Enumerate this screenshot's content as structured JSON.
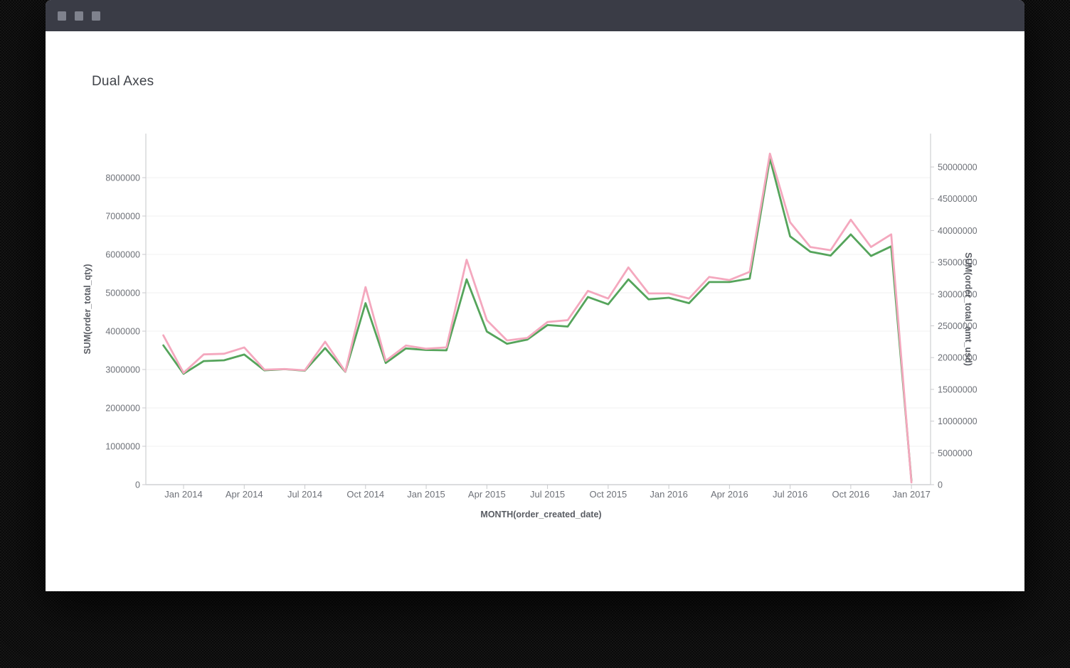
{
  "window": {
    "control_icons": [
      "window-square-icon",
      "window-square-icon",
      "window-square-icon"
    ]
  },
  "colors": {
    "titlebar": "#3a3c46",
    "window_control": "#7f828d",
    "qty_line_green": "#55a45b",
    "amt_line_pink": "#f4a8be",
    "gridline": "#f0f0f1",
    "axis_line": "#d9dadc"
  },
  "chart_data": {
    "type": "line",
    "title": "Dual Axes",
    "xlabel": "MONTH(order_created_date)",
    "ylabel_left": "SUM(order_total_qty)",
    "ylabel_right": "SUM(order_total_amt_usd)",
    "grid": true,
    "legend": "none",
    "x": [
      "Dec 2013",
      "Jan 2014",
      "Feb 2014",
      "Mar 2014",
      "Apr 2014",
      "May 2014",
      "Jun 2014",
      "Jul 2014",
      "Aug 2014",
      "Sep 2014",
      "Oct 2014",
      "Nov 2014",
      "Dec 2014",
      "Jan 2015",
      "Feb 2015",
      "Mar 2015",
      "Apr 2015",
      "May 2015",
      "Jun 2015",
      "Jul 2015",
      "Aug 2015",
      "Sep 2015",
      "Oct 2015",
      "Nov 2015",
      "Dec 2015",
      "Jan 2016",
      "Feb 2016",
      "Mar 2016",
      "Apr 2016",
      "May 2016",
      "Jun 2016",
      "Jul 2016",
      "Aug 2016",
      "Sep 2016",
      "Oct 2016",
      "Nov 2016",
      "Dec 2016",
      "Jan 2017"
    ],
    "x_tick_labels": [
      "Jan 2014",
      "Apr 2014",
      "Jul 2014",
      "Oct 2014",
      "Jan 2015",
      "Apr 2015",
      "Jul 2015",
      "Oct 2015",
      "Jan 2016",
      "Apr 2016",
      "Jul 2016",
      "Oct 2016",
      "Jan 2017"
    ],
    "left_axis": {
      "min": 0,
      "max": 9150000,
      "tick_labels": [
        "0",
        "1000000",
        "2000000",
        "3000000",
        "4000000",
        "5000000",
        "6000000",
        "7000000",
        "8000000"
      ]
    },
    "right_axis": {
      "min": 0,
      "max": 55300000,
      "tick_labels": [
        "0",
        "5000000",
        "10000000",
        "15000000",
        "20000000",
        "25000000",
        "30000000",
        "35000000",
        "40000000",
        "45000000",
        "50000000"
      ]
    },
    "series": [
      {
        "name": "SUM(order_total_qty)",
        "axis": "left",
        "color": "#55a45b",
        "values": [
          3630000,
          2890000,
          3220000,
          3240000,
          3390000,
          2980000,
          3010000,
          2970000,
          3560000,
          2940000,
          4730000,
          3170000,
          3550000,
          3510000,
          3500000,
          5350000,
          3990000,
          3670000,
          3780000,
          4160000,
          4120000,
          4890000,
          4700000,
          5350000,
          4830000,
          4870000,
          4730000,
          5280000,
          5280000,
          5370000,
          8500000,
          6470000,
          6070000,
          5970000,
          6520000,
          5960000,
          6210000,
          100000
        ]
      },
      {
        "name": "SUM(order_total_amt_usd)",
        "axis": "right",
        "color": "#f4a8be",
        "values": [
          23500000,
          17600000,
          20500000,
          20600000,
          21600000,
          18100000,
          18200000,
          18000000,
          22500000,
          17800000,
          31100000,
          19500000,
          21900000,
          21400000,
          21600000,
          35400000,
          25900000,
          22700000,
          23100000,
          25600000,
          25900000,
          30500000,
          29300000,
          34200000,
          30100000,
          30100000,
          29300000,
          32700000,
          32200000,
          33500000,
          52100000,
          41300000,
          37400000,
          36900000,
          41700000,
          37400000,
          39400000,
          350000
        ]
      }
    ]
  }
}
